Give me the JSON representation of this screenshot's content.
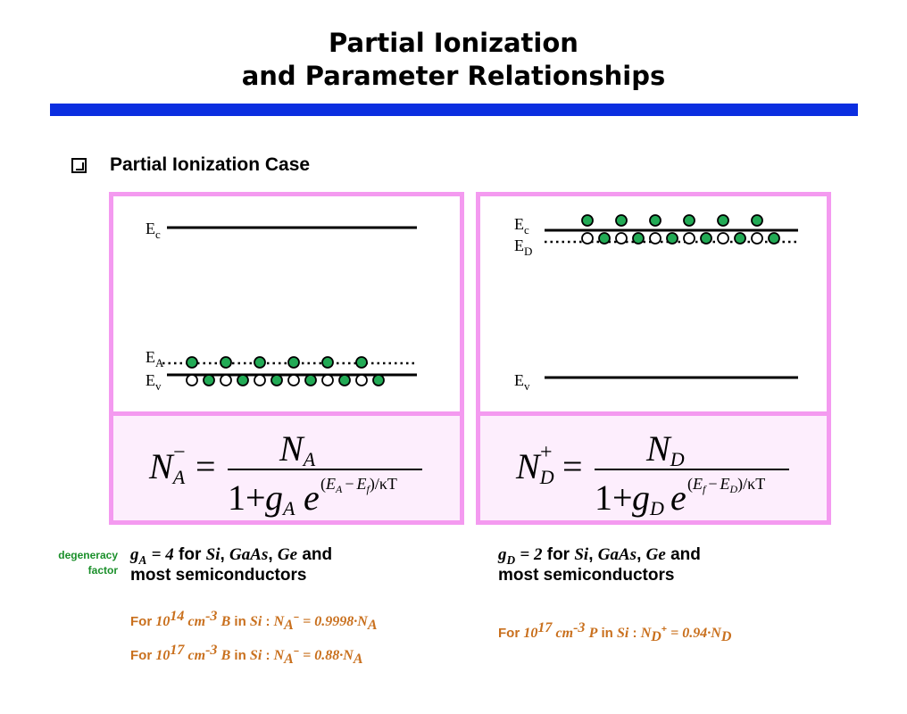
{
  "title": {
    "line1": "Partial Ionization",
    "line2": "and Parameter Relationships"
  },
  "bullet": {
    "text": "Partial Ionization Case"
  },
  "left_band": {
    "level_top": {
      "main": "E",
      "sub": "c"
    },
    "level_mid": {
      "main": "E",
      "sub": "A"
    },
    "level_bottom": {
      "main": "E",
      "sub": "v"
    }
  },
  "right_band": {
    "level_top": {
      "main": "E",
      "sub": "c"
    },
    "level_mid": {
      "main": "E",
      "sub": "D"
    },
    "level_bottom": {
      "main": "E",
      "sub": "v"
    }
  },
  "degeneracy": {
    "line1": "degeneracy",
    "line2": "factor"
  },
  "left_g": {
    "symbol": "g",
    "sub": "A",
    "eq": "= 4",
    "text1": "for",
    "materials": [
      "Si",
      "GaAs",
      "Ge"
    ],
    "and": "and",
    "line2": "most semiconductors"
  },
  "right_g": {
    "symbol": "g",
    "sub": "D",
    "eq": "= 2",
    "text1": "for",
    "materials": [
      "Si",
      "GaAs",
      "Ge"
    ],
    "and": "and",
    "line2": "most semiconductors"
  },
  "examples": {
    "left1": {
      "prefix": "For",
      "conc": "10",
      "exp": "14",
      "unit": "cm",
      "unit_exp": "-3",
      "dopant": "B",
      "in": "in",
      "host": "Si",
      "colon": ":",
      "N": "N",
      "sub": "A",
      "sup": "−",
      "value": "= 0.9998·N",
      "vsub": "A"
    },
    "left2": {
      "prefix": "For",
      "conc": "10",
      "exp": "17",
      "unit": "cm",
      "unit_exp": "-3",
      "dopant": "B",
      "in": "in",
      "host": "Si",
      "colon": ":",
      "N": "N",
      "sub": "A",
      "sup": "−",
      "value": "= 0.88·N",
      "vsub": "A"
    },
    "right1": {
      "prefix": "For",
      "conc": "10",
      "exp": "17",
      "unit": "cm",
      "unit_exp": "-3",
      "dopant": "P",
      "in": "in",
      "host": "Si",
      "colon": ":",
      "N": "N",
      "sub": "D",
      "sup": "+",
      "value": "= 0.94·N",
      "vsub": "D"
    }
  },
  "formulas": {
    "acceptor": {
      "lhs_N": "N",
      "lhs_sub": "A",
      "lhs_sup": "−",
      "eq": "=",
      "num": "N",
      "num_sub": "A",
      "den_one": "1+",
      "g": "g",
      "g_sub": "A",
      "e": "e",
      "exp_open": "(",
      "E1": "E",
      "E1_sub": "A",
      "minus": "−",
      "E2": "E",
      "E2_sub": "f",
      "exp_close": ")/κT"
    },
    "donor": {
      "lhs_N": "N",
      "lhs_sub": "D",
      "lhs_sup": "+",
      "eq": "=",
      "num": "N",
      "num_sub": "D",
      "den_one": "1+",
      "g": "g",
      "g_sub": "D",
      "e": "e",
      "exp_open": "(",
      "E1": "E",
      "E1_sub": "f",
      "minus": "−",
      "E2": "E",
      "E2_sub": "D",
      "exp_close": ")/κT"
    }
  },
  "colors": {
    "pink_border": "#f49af0",
    "formula_bg": "#fdeefd",
    "blue_bar": "#0b2ee0",
    "electron": "#22aa55",
    "green_label": "#1a8f2a",
    "orange_text": "#c9701e"
  },
  "band_states": {
    "acceptor_level": [
      true,
      true,
      true,
      true,
      true,
      true
    ],
    "valence_band": [
      false,
      true,
      false,
      true,
      false,
      true,
      false,
      true,
      false,
      true,
      false,
      true
    ],
    "conduction_band": [
      true,
      true,
      true,
      true,
      true,
      true
    ],
    "donor_level": [
      false,
      true,
      false,
      true,
      false,
      true,
      false,
      true,
      false,
      true,
      false,
      true
    ]
  }
}
